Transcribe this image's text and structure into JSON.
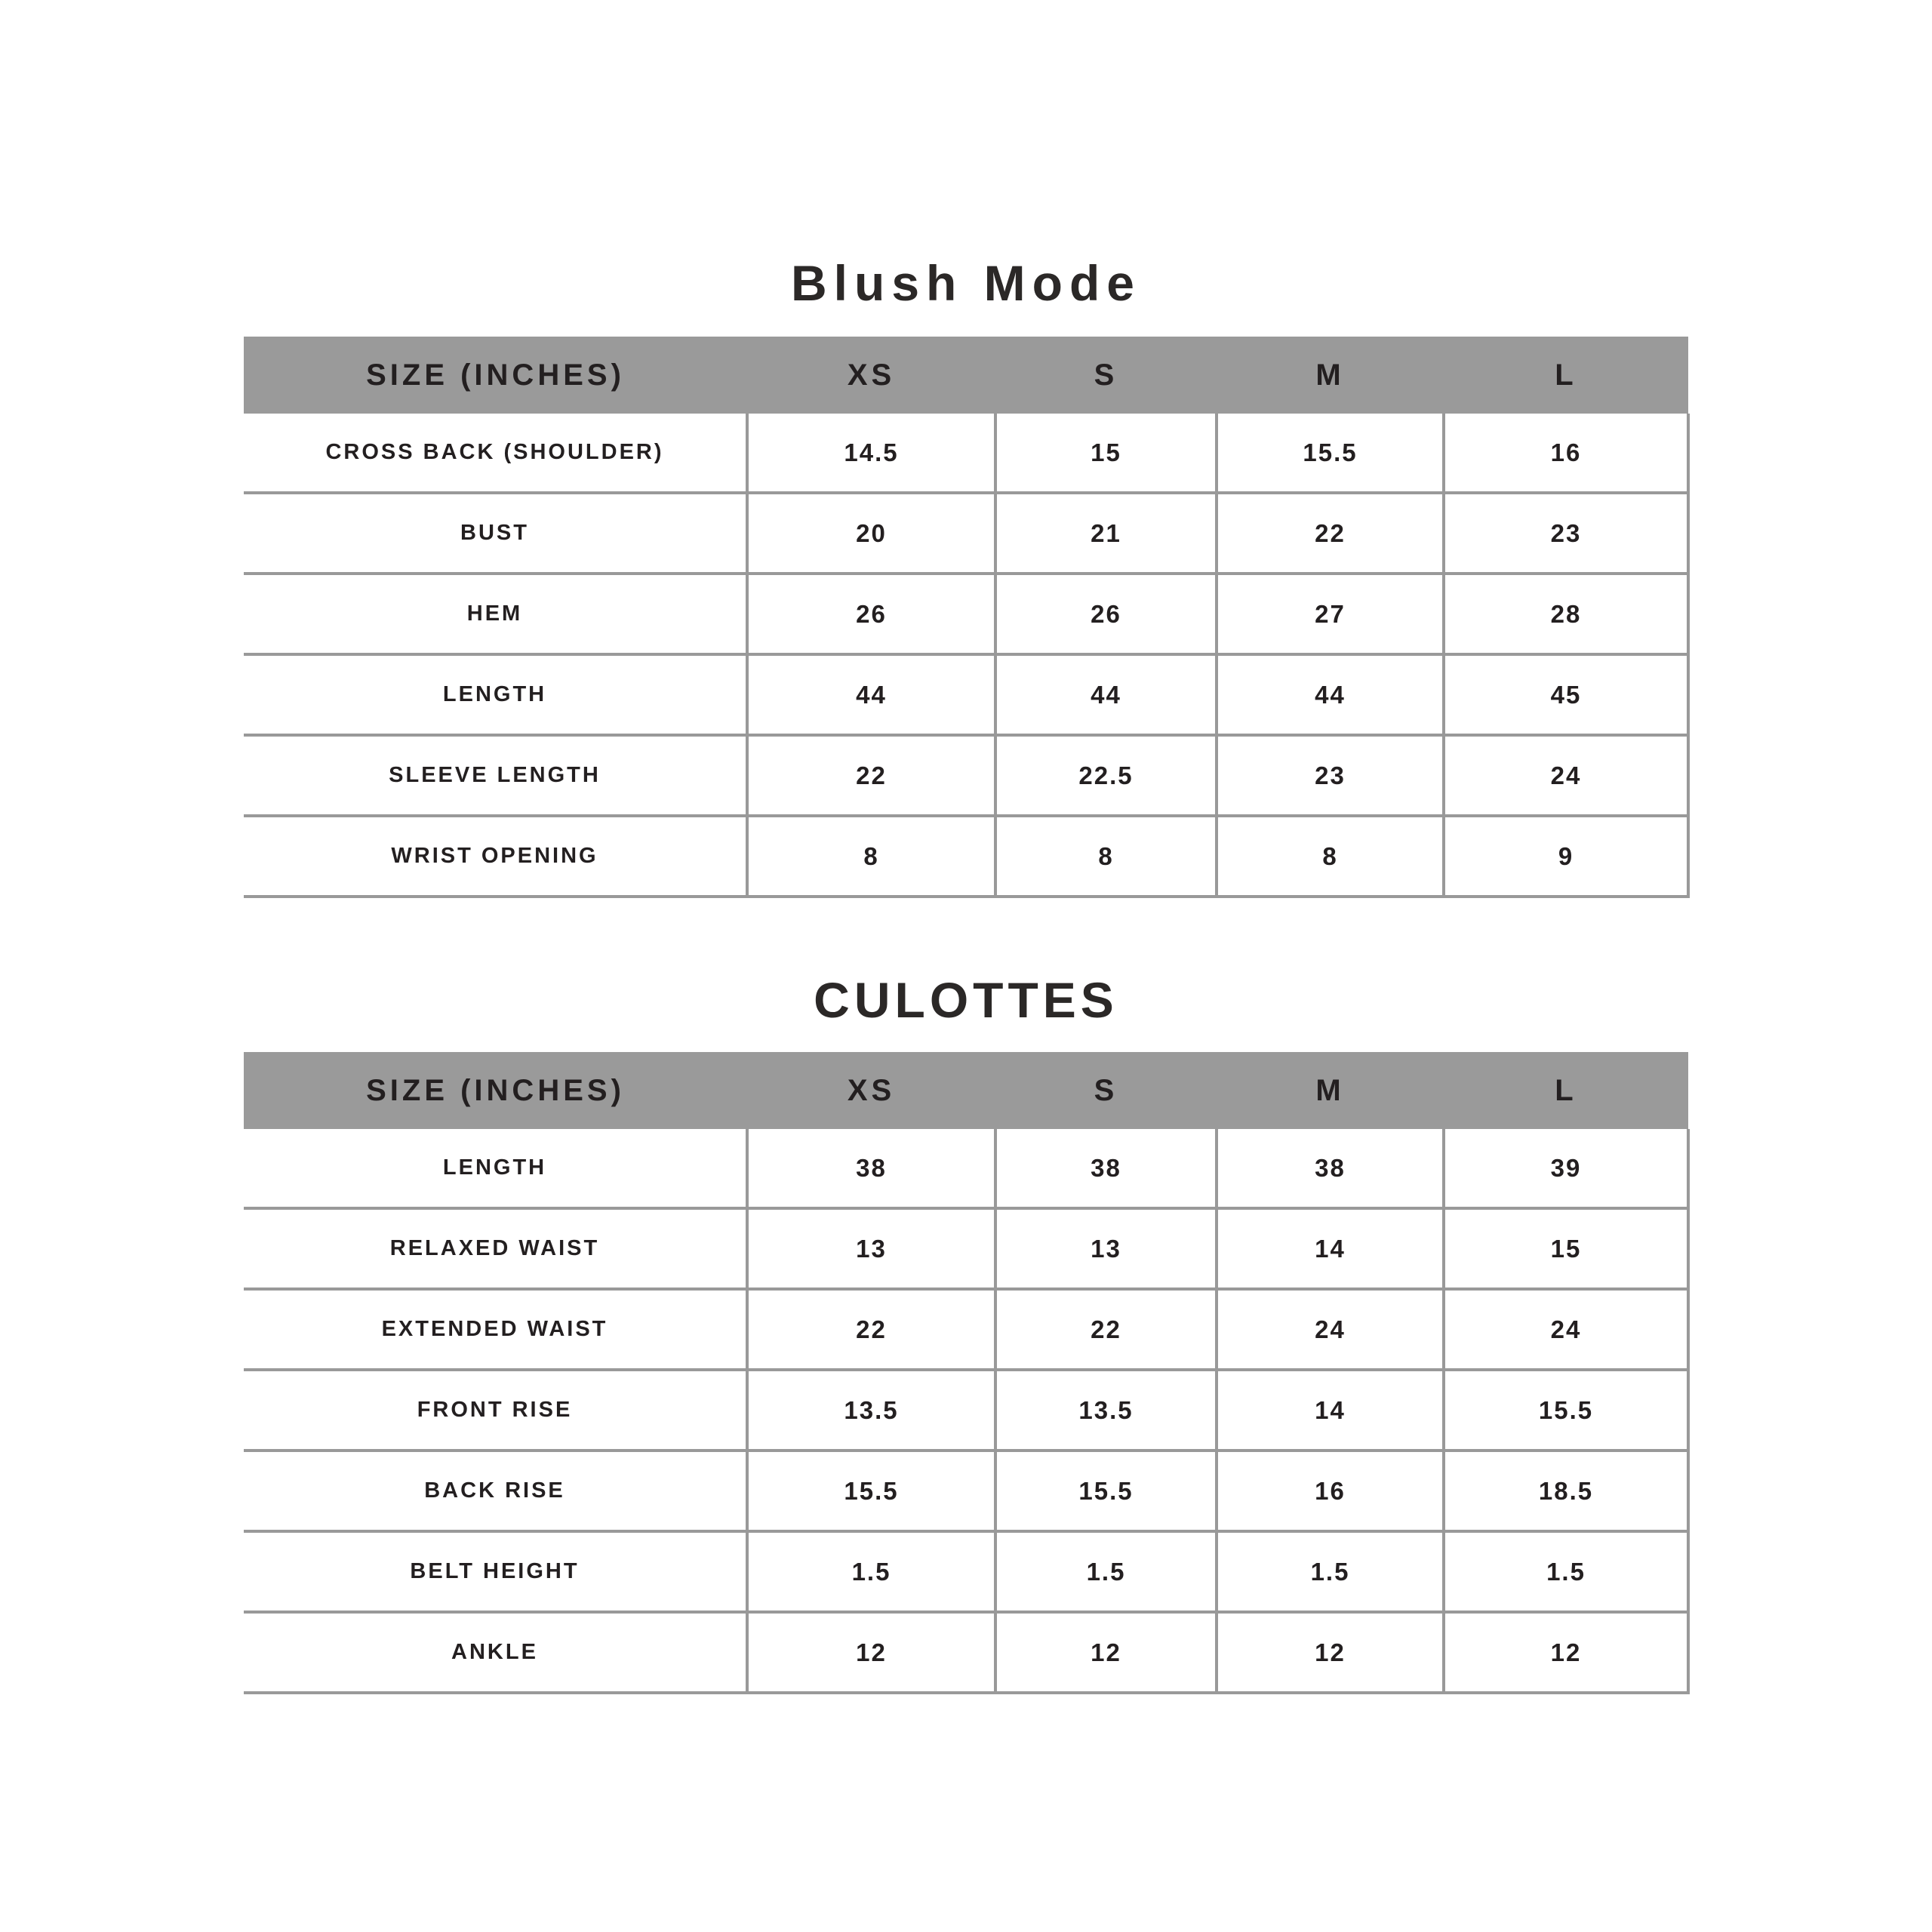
{
  "chart_data": [
    {
      "type": "table",
      "title": "Blush Mode",
      "columns": [
        "SIZE (INCHES)",
        "XS",
        "S",
        "M",
        "L"
      ],
      "rows": [
        {
          "label": "CROSS BACK (SHOULDER)",
          "values": [
            "14.5",
            "15",
            "15.5",
            "16"
          ]
        },
        {
          "label": "BUST",
          "values": [
            "20",
            "21",
            "22",
            "23"
          ]
        },
        {
          "label": "HEM",
          "values": [
            "26",
            "26",
            "27",
            "28"
          ]
        },
        {
          "label": "LENGTH",
          "values": [
            "44",
            "44",
            "44",
            "45"
          ]
        },
        {
          "label": "SLEEVE LENGTH",
          "values": [
            "22",
            "22.5",
            "23",
            "24"
          ]
        },
        {
          "label": "WRIST OPENING",
          "values": [
            "8",
            "8",
            "8",
            "9"
          ]
        }
      ]
    },
    {
      "type": "table",
      "title": "CULOTTES",
      "columns": [
        "SIZE (INCHES)",
        "XS",
        "S",
        "M",
        "L"
      ],
      "rows": [
        {
          "label": "LENGTH",
          "values": [
            "38",
            "38",
            "38",
            "39"
          ]
        },
        {
          "label": "RELAXED WAIST",
          "values": [
            "13",
            "13",
            "14",
            "15"
          ]
        },
        {
          "label": "EXTENDED WAIST",
          "values": [
            "22",
            "22",
            "24",
            "24"
          ]
        },
        {
          "label": "FRONT RISE",
          "values": [
            "13.5",
            "13.5",
            "14",
            "15.5"
          ]
        },
        {
          "label": "BACK RISE",
          "values": [
            "15.5",
            "15.5",
            "16",
            "18.5"
          ]
        },
        {
          "label": "BELT HEIGHT",
          "values": [
            "1.5",
            "1.5",
            "1.5",
            "1.5"
          ]
        },
        {
          "label": "ANKLE",
          "values": [
            "12",
            "12",
            "12",
            "12"
          ]
        }
      ]
    }
  ],
  "colors": {
    "background": "#ffffff",
    "header_bg": "#9a9a9a",
    "grid_line": "#999999",
    "text": "#231f20",
    "title_text": "#2b2827"
  }
}
